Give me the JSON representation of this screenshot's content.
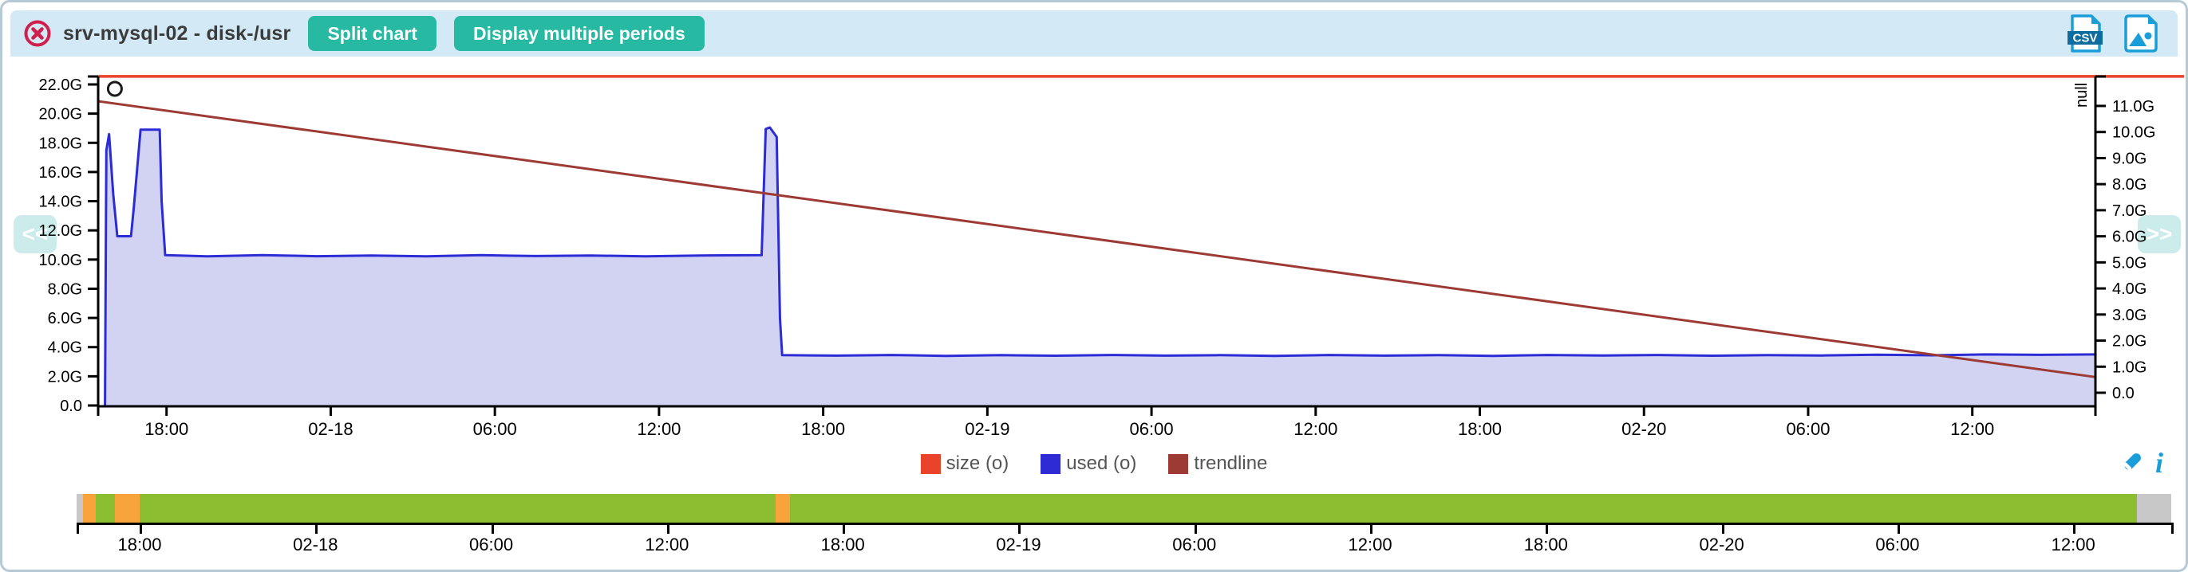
{
  "header": {
    "title": "srv-mysql-02 - disk-/usr",
    "buttons": [
      {
        "label": "Split chart"
      },
      {
        "label": "Display multiple periods"
      }
    ],
    "csv_icon_text": "CSV"
  },
  "nav": {
    "prev_label": "<<",
    "next_label": ">>"
  },
  "chart_data": {
    "type": "area",
    "title": "srv-mysql-02 - disk-/usr",
    "x_axis": {
      "tick_labels": [
        "18:00",
        "02-18",
        "06:00",
        "12:00",
        "18:00",
        "02-19",
        "06:00",
        "12:00",
        "18:00",
        "02-20",
        "06:00",
        "12:00"
      ],
      "first_tick_hour": 2.5,
      "tick_step_hours": 6,
      "span_hours": 73
    },
    "left_axis": {
      "min": 0,
      "max": 22,
      "tick_step": 2,
      "tick_labels": [
        "0.0",
        "2.0G",
        "4.0G",
        "6.0G",
        "8.0G",
        "10.0G",
        "12.0G",
        "14.0G",
        "16.0G",
        "18.0G",
        "20.0G",
        "22.0G"
      ]
    },
    "right_axis": {
      "min": 0,
      "max": 11,
      "tick_step": 1,
      "unit_label": "null",
      "tick_labels": [
        "0.0",
        "1.0G",
        "2.0G",
        "3.0G",
        "4.0G",
        "5.0G",
        "6.0G",
        "7.0G",
        "8.0G",
        "9.0G",
        "10.0G",
        "11.0G"
      ]
    },
    "series": [
      {
        "name": "size (o)",
        "type": "hline",
        "color": "#e9432b",
        "value": 22.55
      },
      {
        "name": "used (o)",
        "type": "area",
        "color": "#2b2cd5",
        "fill": "#d2d3f3",
        "points": [
          [
            0.25,
            0
          ],
          [
            0.3,
            17.5
          ],
          [
            0.4,
            18.6
          ],
          [
            0.55,
            14.5
          ],
          [
            0.7,
            11.6
          ],
          [
            1.2,
            11.6
          ],
          [
            1.3,
            13.5
          ],
          [
            1.55,
            18.9
          ],
          [
            2.25,
            18.9
          ],
          [
            2.32,
            14
          ],
          [
            2.45,
            10.3
          ],
          [
            4,
            10.22
          ],
          [
            6,
            10.3
          ],
          [
            8,
            10.23
          ],
          [
            10,
            10.28
          ],
          [
            12,
            10.22
          ],
          [
            14,
            10.3
          ],
          [
            16,
            10.24
          ],
          [
            18,
            10.28
          ],
          [
            20,
            10.22
          ],
          [
            22,
            10.28
          ],
          [
            24.25,
            10.3
          ],
          [
            24.4,
            18.95
          ],
          [
            24.55,
            19.05
          ],
          [
            24.8,
            18.4
          ],
          [
            24.92,
            6
          ],
          [
            25.0,
            3.45
          ],
          [
            27,
            3.42
          ],
          [
            29,
            3.46
          ],
          [
            31,
            3.4
          ],
          [
            33,
            3.45
          ],
          [
            35,
            3.41
          ],
          [
            37,
            3.46
          ],
          [
            39,
            3.42
          ],
          [
            41,
            3.45
          ],
          [
            43,
            3.4
          ],
          [
            45,
            3.46
          ],
          [
            47,
            3.42
          ],
          [
            49,
            3.45
          ],
          [
            51,
            3.4
          ],
          [
            53,
            3.46
          ],
          [
            55,
            3.43
          ],
          [
            57,
            3.46
          ],
          [
            59,
            3.41
          ],
          [
            61,
            3.45
          ],
          [
            63,
            3.43
          ],
          [
            65,
            3.48
          ],
          [
            67,
            3.44
          ],
          [
            69,
            3.5
          ],
          [
            71,
            3.47
          ],
          [
            73,
            3.5
          ]
        ]
      },
      {
        "name": "trendline",
        "type": "line",
        "color": "#9d3a34",
        "points": [
          [
            0,
            20.85
          ],
          [
            73,
            1.95
          ]
        ]
      }
    ],
    "event_marker": {
      "shape": "circle",
      "x_hour": 0.61,
      "value": 21.7
    }
  },
  "legend": {
    "items": [
      {
        "label": "size (o)",
        "color": "#e9432b"
      },
      {
        "label": "used (o)",
        "color": "#2f2bd4"
      },
      {
        "label": "trendline",
        "color": "#9d3a34"
      }
    ]
  },
  "timeline": {
    "segments": [
      {
        "status": "unknown",
        "color": "#c8c8c8",
        "from_pct": 0,
        "to_pct": 0.3
      },
      {
        "status": "warning",
        "color": "#f9a33c",
        "from_pct": 0.3,
        "to_pct": 0.91
      },
      {
        "status": "normal",
        "color": "#8bbe31",
        "from_pct": 0.91,
        "to_pct": 1.83
      },
      {
        "status": "warning",
        "color": "#f9a33c",
        "from_pct": 1.83,
        "to_pct": 3.01
      },
      {
        "status": "normal",
        "color": "#8bbe31",
        "from_pct": 3.01,
        "to_pct": 33.37
      },
      {
        "status": "warning",
        "color": "#f9a33c",
        "from_pct": 33.37,
        "to_pct": 34.06
      },
      {
        "status": "normal",
        "color": "#8bbe31",
        "from_pct": 34.06,
        "to_pct": 98.36
      },
      {
        "status": "unknown",
        "color": "#c8c8c8",
        "from_pct": 98.36,
        "to_pct": 100
      }
    ],
    "tick_labels": [
      "18:00",
      "02-18",
      "06:00",
      "12:00",
      "18:00",
      "02-19",
      "06:00",
      "12:00",
      "18:00",
      "02-20",
      "06:00",
      "12:00"
    ],
    "first_tick_pct": 3.01,
    "tick_step_pct": 8.392
  },
  "colors": {
    "header_bg": "#d3e9f5",
    "accent_teal": "#27b9a1",
    "icon_blue": "#1b9dd9",
    "close_red": "#d01f4d",
    "axis": "#000000"
  }
}
